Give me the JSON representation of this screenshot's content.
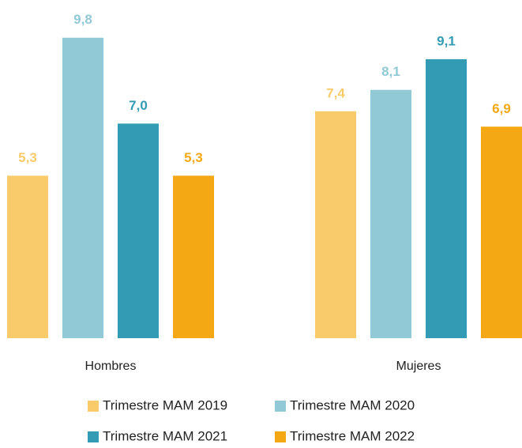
{
  "chart_data": {
    "type": "bar",
    "categories": [
      "Hombres",
      "Mujeres"
    ],
    "series": [
      {
        "name": "Trimestre MAM 2019",
        "color": "#f9cb6a",
        "values": [
          5.3,
          7.4
        ],
        "value_labels": [
          "5,3",
          "7,4"
        ]
      },
      {
        "name": "Trimestre MAM 2020",
        "color": "#92c9d6",
        "values": [
          9.8,
          8.1
        ],
        "value_labels": [
          "9,8",
          "8,1"
        ]
      },
      {
        "name": "Trimestre MAM 2021",
        "color": "#339bb3",
        "values": [
          7.0,
          9.1
        ],
        "value_labels": [
          "7,0",
          "9,1"
        ]
      },
      {
        "name": "Trimestre MAM 2022",
        "color": "#f4a914",
        "values": [
          5.3,
          6.9
        ],
        "value_labels": [
          "5,3",
          "6,9"
        ]
      }
    ]
  }
}
